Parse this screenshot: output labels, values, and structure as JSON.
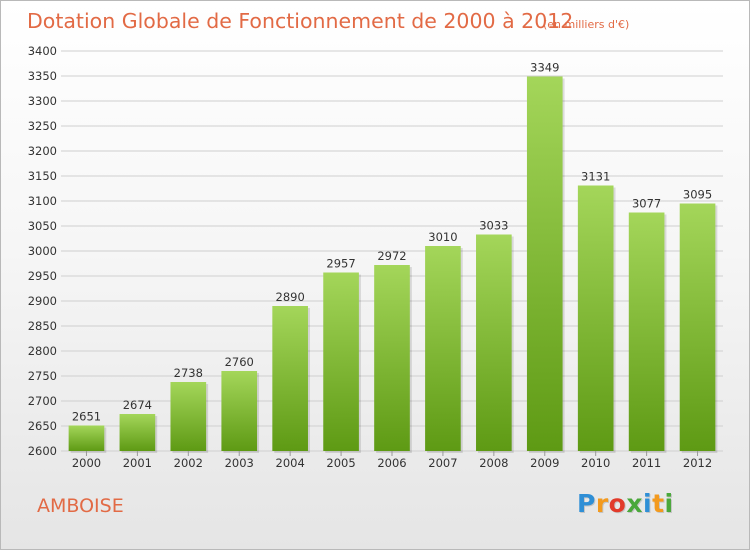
{
  "header": {
    "title": "Dotation Globale de Fonctionnement de 2000 à 2012",
    "subtitle": "(en milliers d'€)"
  },
  "commune": "AMBOISE",
  "logo": {
    "text": "Proxiti",
    "letters": [
      "P",
      "r",
      "o",
      "x",
      "i",
      "t",
      "i"
    ],
    "colors": [
      "#2f8fd6",
      "#f39a1e",
      "#e23a2a",
      "#4aa83a",
      "#2f8fd6",
      "#f39a1e",
      "#4aa83a"
    ]
  },
  "colors": {
    "title": "#e26a45",
    "bar_top": "#a4d65a",
    "bar_bottom": "#5e9a14",
    "grid": "#cfcfcf",
    "axis_text": "#333333"
  },
  "chart_data": {
    "type": "bar",
    "title": "Dotation Globale de Fonctionnement de 2000 à 2012",
    "subtitle": "(en milliers d'€)",
    "xlabel": "",
    "ylabel": "",
    "categories": [
      "2000",
      "2001",
      "2002",
      "2003",
      "2004",
      "2005",
      "2006",
      "2007",
      "2008",
      "2009",
      "2010",
      "2011",
      "2012"
    ],
    "values": [
      2651,
      2674,
      2738,
      2760,
      2890,
      2957,
      2972,
      3010,
      3033,
      3349,
      3131,
      3077,
      3095
    ],
    "ylim": [
      2600,
      3400
    ],
    "yticks": [
      2600,
      2650,
      2700,
      2750,
      2800,
      2850,
      2900,
      2950,
      3000,
      3050,
      3100,
      3150,
      3200,
      3250,
      3300,
      3350,
      3400
    ],
    "grid": true,
    "legend": "none"
  }
}
